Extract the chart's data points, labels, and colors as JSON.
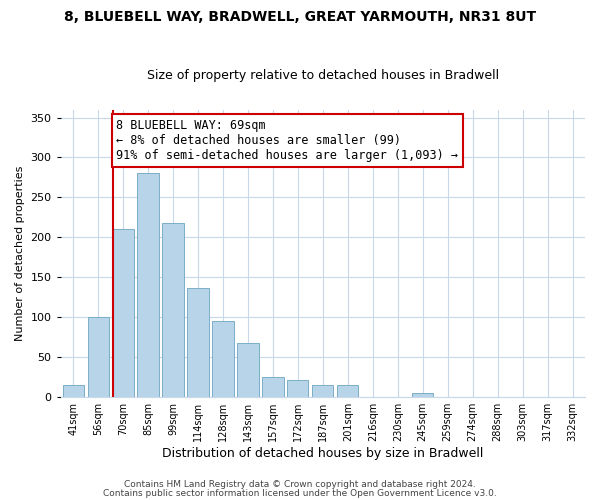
{
  "title": "8, BLUEBELL WAY, BRADWELL, GREAT YARMOUTH, NR31 8UT",
  "subtitle": "Size of property relative to detached houses in Bradwell",
  "xlabel": "Distribution of detached houses by size in Bradwell",
  "ylabel": "Number of detached properties",
  "bar_values": [
    15,
    101,
    211,
    280,
    218,
    137,
    95,
    68,
    25,
    22,
    15,
    15,
    0,
    0,
    5,
    0,
    0,
    0,
    0,
    0,
    0
  ],
  "bar_labels": [
    "41sqm",
    "56sqm",
    "70sqm",
    "85sqm",
    "99sqm",
    "114sqm",
    "128sqm",
    "143sqm",
    "157sqm",
    "172sqm",
    "187sqm",
    "201sqm",
    "216sqm",
    "230sqm",
    "245sqm",
    "259sqm",
    "274sqm",
    "288sqm",
    "303sqm",
    "317sqm",
    "332sqm"
  ],
  "bar_color": "#b8d4e8",
  "bar_edge_color": "#7aaec8",
  "ylim": [
    0,
    360
  ],
  "yticks": [
    0,
    50,
    100,
    150,
    200,
    250,
    300,
    350
  ],
  "vline_index": 2,
  "vline_color": "#cc0000",
  "annotation_line1": "8 BLUEBELL WAY: 69sqm",
  "annotation_line2": "← 8% of detached houses are smaller (99)",
  "annotation_line3": "91% of semi-detached houses are larger (1,093) →",
  "annotation_box_color": "#ffffff",
  "annotation_box_edgecolor": "#cc0000",
  "annotation_fontsize": 8.5,
  "footer1": "Contains HM Land Registry data © Crown copyright and database right 2024.",
  "footer2": "Contains public sector information licensed under the Open Government Licence v3.0.",
  "background_color": "#ffffff",
  "grid_color": "#c8d8e8",
  "title_fontsize": 10,
  "subtitle_fontsize": 9,
  "ylabel_fontsize": 8,
  "xlabel_fontsize": 9
}
